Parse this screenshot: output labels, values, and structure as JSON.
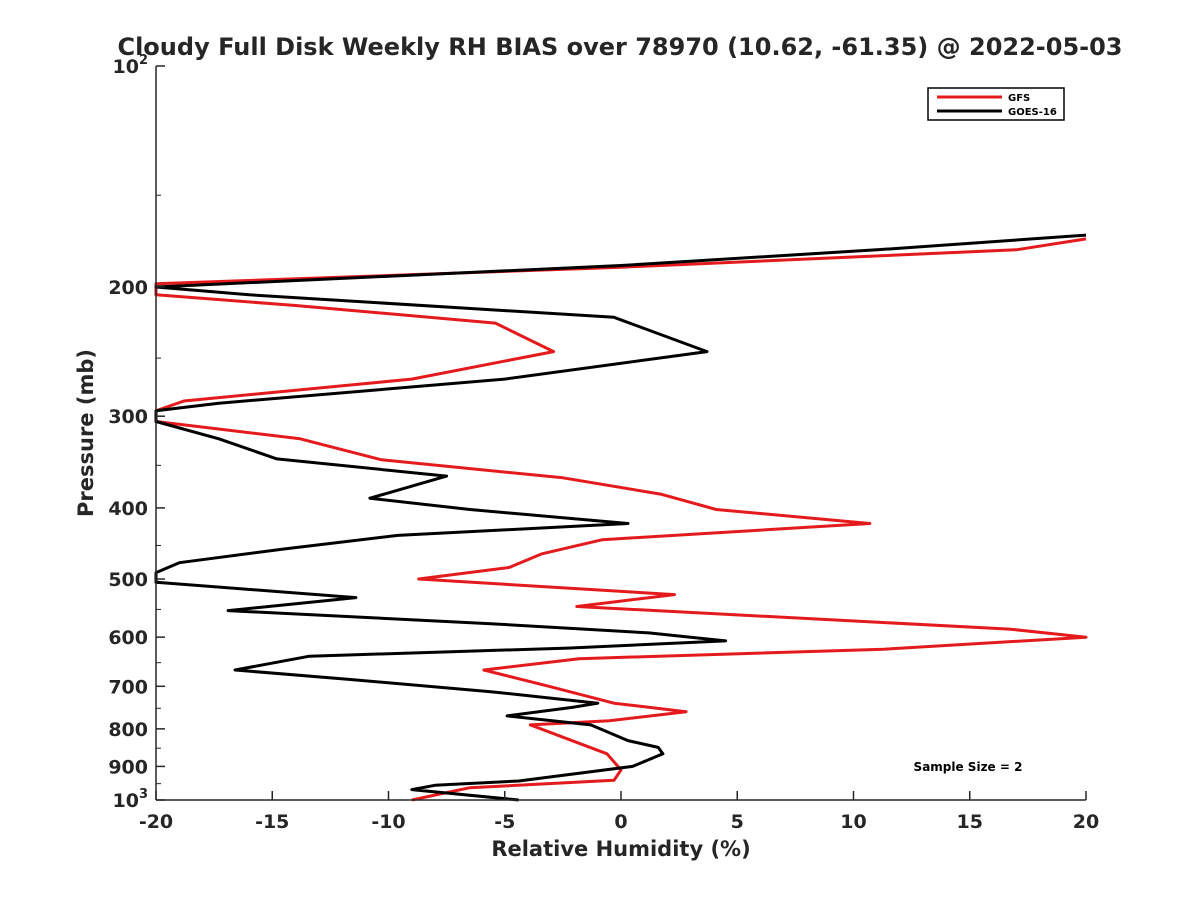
{
  "chart_data": {
    "type": "line",
    "title": "Cloudy Full Disk Weekly RH BIAS over 78970 (10.62, -61.35) @ 2022-05-03",
    "xlabel": "Relative Humidity (%)",
    "ylabel": "Pressure (mb)",
    "xlim": [
      -20,
      20
    ],
    "ylim": [
      100,
      1000
    ],
    "y_scale": "log",
    "y_reversed": true,
    "x_ticks": [
      -20,
      -15,
      -10,
      -5,
      0,
      5,
      10,
      15,
      20
    ],
    "x_tick_labels": [
      "-20",
      "-15",
      "-10",
      "-5",
      "0",
      "5",
      "10",
      "15",
      "20"
    ],
    "y_ticks": [
      200,
      300,
      400,
      500,
      600,
      700,
      800,
      900
    ],
    "y_tick_labels": [
      "200",
      "300",
      "400",
      "500",
      "600",
      "700",
      "800",
      "900"
    ],
    "y_end_ticks": [
      {
        "value": 100,
        "base": "10",
        "exp": "2"
      },
      {
        "value": 1000,
        "base": "10",
        "exp": "3"
      }
    ],
    "grid": false,
    "legend_position": "top-right",
    "annotation": "Sample Size = 2",
    "series": [
      {
        "name": "GFS",
        "color": "#e41a1c",
        "points": [
          [
            20,
            172
          ],
          [
            17,
            178
          ],
          [
            0,
            188
          ],
          [
            -20,
            198
          ],
          [
            -20,
            205
          ],
          [
            -14,
            212
          ],
          [
            -5.4,
            224
          ],
          [
            -2.9,
            245
          ],
          [
            -9,
            267
          ],
          [
            -18.8,
            286
          ],
          [
            -20,
            295
          ],
          [
            -20,
            305
          ],
          [
            -13.8,
            322
          ],
          [
            -10.3,
            344
          ],
          [
            -2.5,
            364
          ],
          [
            1.7,
            383
          ],
          [
            4.1,
            402
          ],
          [
            10.7,
            420
          ],
          [
            -0.8,
            442
          ],
          [
            -3.4,
            462
          ],
          [
            -4.8,
            482
          ],
          [
            -8.7,
            500
          ],
          [
            2.3,
            525
          ],
          [
            -1.9,
            545
          ],
          [
            16.7,
            585
          ],
          [
            20,
            600
          ],
          [
            11.3,
            623
          ],
          [
            -1.8,
            642
          ],
          [
            -5.9,
            665
          ],
          [
            -3.1,
            700
          ],
          [
            -0.3,
            738
          ],
          [
            2.8,
            758
          ],
          [
            -0.5,
            780
          ],
          [
            -3.9,
            790
          ],
          [
            -3,
            810
          ],
          [
            -0.6,
            865
          ],
          [
            0,
            910
          ],
          [
            -0.3,
            940
          ],
          [
            -6.5,
            962
          ],
          [
            -9,
            1000
          ]
        ]
      },
      {
        "name": "GOES-16",
        "color": "#000000",
        "points": [
          [
            20,
            170
          ],
          [
            11,
            178
          ],
          [
            0,
            187
          ],
          [
            -20,
            200
          ],
          [
            -16,
            205
          ],
          [
            -0.3,
            220
          ],
          [
            3.7,
            245
          ],
          [
            -5,
            267
          ],
          [
            -17.3,
            288
          ],
          [
            -20,
            295
          ],
          [
            -20,
            305
          ],
          [
            -17.3,
            322
          ],
          [
            -14.8,
            343
          ],
          [
            -7.5,
            362
          ],
          [
            -10.8,
            388
          ],
          [
            -6.5,
            402
          ],
          [
            0.3,
            420
          ],
          [
            -9.6,
            436
          ],
          [
            -14.5,
            455
          ],
          [
            -19,
            475
          ],
          [
            -20,
            490
          ],
          [
            -20,
            505
          ],
          [
            -11.4,
            530
          ],
          [
            -16.9,
            552
          ],
          [
            -5.7,
            575
          ],
          [
            1.2,
            592
          ],
          [
            4.5,
            607
          ],
          [
            -2.3,
            621
          ],
          [
            -13.4,
            637
          ],
          [
            -16.6,
            665
          ],
          [
            -11.7,
            685
          ],
          [
            -5.6,
            712
          ],
          [
            -1,
            738
          ],
          [
            -2.1,
            748
          ],
          [
            -4.9,
            768
          ],
          [
            -1.3,
            790
          ],
          [
            0.3,
            830
          ],
          [
            1.6,
            848
          ],
          [
            1.8,
            865
          ],
          [
            0.5,
            900
          ],
          [
            -4.4,
            942
          ],
          [
            -8,
            955
          ],
          [
            -9,
            968
          ],
          [
            -4.4,
            1000
          ]
        ]
      }
    ]
  }
}
